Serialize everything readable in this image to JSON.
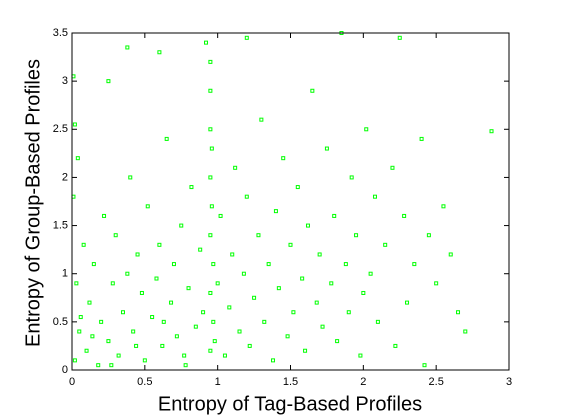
{
  "chart_data": {
    "type": "scatter",
    "x_label": "Entropy of Tag-Based Profiles",
    "y_label": "Entropy of Group-Based Profiles",
    "color": "#00ff00",
    "xlim": [
      0,
      3
    ],
    "xticks": [
      0,
      0.5,
      1,
      1.5,
      2,
      2.5,
      3
    ],
    "ylim": [
      0,
      3.5
    ],
    "yticks": [
      0,
      0.5,
      1,
      1.5,
      2,
      2.5,
      3,
      3.5
    ],
    "x": [
      0.02,
      0.05,
      0.03,
      0.08,
      0.01,
      0.04,
      0.02,
      0.01,
      0.1,
      0.12,
      0.15,
      0.18,
      0.2,
      0.22,
      0.25,
      0.28,
      0.3,
      0.32,
      0.35,
      0.38,
      0.4,
      0.42,
      0.45,
      0.48,
      0.5,
      0.52,
      0.55,
      0.58,
      0.6,
      0.62,
      0.65,
      0.68,
      0.7,
      0.72,
      0.75,
      0.78,
      0.8,
      0.82,
      0.85,
      0.88,
      0.9,
      0.92,
      0.95,
      0.95,
      0.95,
      0.95,
      0.95,
      0.95,
      0.95,
      0.96,
      0.96,
      0.97,
      0.97,
      0.98,
      1.0,
      1.02,
      1.05,
      1.08,
      1.1,
      1.12,
      1.15,
      1.18,
      1.2,
      1.22,
      1.25,
      1.28,
      1.3,
      1.32,
      1.35,
      1.38,
      1.4,
      1.42,
      1.45,
      1.48,
      1.5,
      1.52,
      1.55,
      1.58,
      1.6,
      1.62,
      1.65,
      1.68,
      1.7,
      1.72,
      1.75,
      1.78,
      1.8,
      1.82,
      1.85,
      1.88,
      1.9,
      1.92,
      1.95,
      1.98,
      2.0,
      2.02,
      2.05,
      2.08,
      2.1,
      2.15,
      2.2,
      2.22,
      2.25,
      2.28,
      2.3,
      2.35,
      2.4,
      2.42,
      2.45,
      2.5,
      2.55,
      2.6,
      2.65,
      2.7,
      2.88,
      0.38,
      0.6,
      1.2,
      0.25,
      0.06,
      0.14,
      0.27,
      0.44,
      0.63,
      0.77
    ],
    "y": [
      0.1,
      0.4,
      0.9,
      1.3,
      1.8,
      2.2,
      2.55,
      3.05,
      0.2,
      0.7,
      1.1,
      0.05,
      0.5,
      1.6,
      0.3,
      0.9,
      1.4,
      0.15,
      0.6,
      1.0,
      2.0,
      0.4,
      1.2,
      0.8,
      0.1,
      1.7,
      0.55,
      0.95,
      1.3,
      0.25,
      2.4,
      0.7,
      1.1,
      0.35,
      1.5,
      0.05,
      0.85,
      1.9,
      0.45,
      1.25,
      0.6,
      3.4,
      0.2,
      0.8,
      1.4,
      2.0,
      2.5,
      2.9,
      3.2,
      1.7,
      2.3,
      0.5,
      1.1,
      0.3,
      0.9,
      1.6,
      0.15,
      0.65,
      1.2,
      2.1,
      0.4,
      1.0,
      1.8,
      0.25,
      0.75,
      1.4,
      2.6,
      0.5,
      1.1,
      0.1,
      1.65,
      0.85,
      2.2,
      0.35,
      1.3,
      0.6,
      1.9,
      0.95,
      0.2,
      1.5,
      2.9,
      0.7,
      1.2,
      0.45,
      2.3,
      0.9,
      1.6,
      0.3,
      3.5,
      1.1,
      0.6,
      2.0,
      1.4,
      0.15,
      0.8,
      2.5,
      1.0,
      1.8,
      0.5,
      1.3,
      2.1,
      0.25,
      3.45,
      1.6,
      0.7,
      1.1,
      2.4,
      0.05,
      1.4,
      0.9,
      1.7,
      1.2,
      0.6,
      0.4,
      2.48,
      3.35,
      3.3,
      3.45,
      3.0,
      0.55,
      0.35,
      0.05,
      0.25,
      0.5,
      0.15
    ]
  }
}
